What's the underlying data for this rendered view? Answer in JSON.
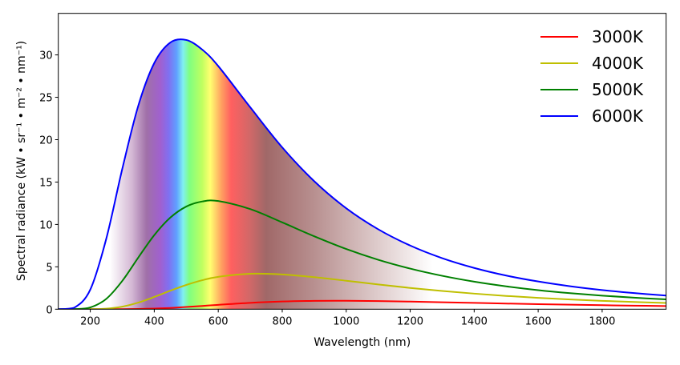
{
  "chart_data": {
    "type": "line",
    "title": "",
    "xlabel": "Wavelength (nm)",
    "ylabel": "Spectral radiance (kW • sr⁻¹ • m⁻² • nm⁻¹)",
    "xlim": [
      100,
      2000
    ],
    "ylim": [
      0,
      34.9
    ],
    "xticks": [
      200,
      400,
      600,
      800,
      1000,
      1200,
      1400,
      1600,
      1800
    ],
    "yticks": [
      0,
      5,
      10,
      15,
      20,
      25,
      30
    ],
    "grid": false,
    "legend_position": "top-right",
    "x": [
      100,
      150,
      200,
      250,
      300,
      350,
      400,
      450,
      500,
      550,
      600,
      700,
      800,
      900,
      1000,
      1100,
      1200,
      1300,
      1400,
      1500,
      1600,
      1700,
      1800,
      1900,
      2000
    ],
    "series": [
      {
        "name": "3000K",
        "color": "#ff0000",
        "values": [
          0,
          0,
          0,
          0.0006,
          0.0056,
          0.0255,
          0.072,
          0.152,
          0.26,
          0.386,
          0.517,
          0.75,
          0.908,
          0.983,
          0.993,
          0.957,
          0.896,
          0.823,
          0.745,
          0.668,
          0.597,
          0.531,
          0.472,
          0.419,
          0.372
        ]
      },
      {
        "name": "4000K",
        "color": "#bfbf00",
        "values": [
          0,
          0,
          0.0058,
          0.069,
          0.304,
          0.78,
          1.445,
          2.18,
          2.86,
          3.42,
          3.82,
          4.18,
          4.1,
          3.78,
          3.36,
          2.92,
          2.51,
          2.15,
          1.84,
          1.568,
          1.34,
          1.149,
          0.989,
          0.853,
          0.738
        ]
      },
      {
        "name": "5000K",
        "color": "#008000",
        "values": [
          0,
          0.0073,
          0.21,
          1.223,
          3.34,
          6.09,
          8.74,
          10.8,
          12.11,
          12.71,
          12.76,
          11.81,
          10.24,
          8.6,
          7.1,
          5.83,
          4.79,
          3.94,
          3.25,
          2.7,
          2.25,
          1.89,
          1.6,
          1.36,
          1.157
        ]
      },
      {
        "name": "6000K",
        "color": "#0000ff",
        "values": [
          0.0005,
          0.178,
          2.31,
          8.32,
          16.55,
          24.0,
          29.04,
          31.46,
          31.76,
          30.62,
          28.68,
          23.82,
          19.09,
          15.1,
          11.91,
          9.43,
          7.51,
          6.02,
          4.87,
          3.97,
          3.27,
          2.71,
          2.26,
          1.9,
          1.61
        ]
      }
    ],
    "spectrum_fill": {
      "under_series": "6000K",
      "stops": [
        {
          "wavelength": 261,
          "color": "#ffffff"
        },
        {
          "wavelength": 330,
          "color": "#d4b8d4"
        },
        {
          "wavelength": 376,
          "color": "#a070a8"
        },
        {
          "wavelength": 420,
          "color": "#a060d0"
        },
        {
          "wavelength": 445,
          "color": "#8070f0"
        },
        {
          "wavelength": 470,
          "color": "#60a0ff"
        },
        {
          "wavelength": 490,
          "color": "#80f0f0"
        },
        {
          "wavelength": 510,
          "color": "#80ff80"
        },
        {
          "wavelength": 550,
          "color": "#c0ff60"
        },
        {
          "wavelength": 575,
          "color": "#ffff70"
        },
        {
          "wavelength": 610,
          "color": "#ffa060"
        },
        {
          "wavelength": 640,
          "color": "#ff6060"
        },
        {
          "wavelength": 700,
          "color": "#d06868"
        },
        {
          "wavelength": 750,
          "color": "#a06868"
        },
        {
          "wavelength": 900,
          "color": "#b89090"
        },
        {
          "wavelength": 1270,
          "color": "#ffffff"
        }
      ]
    }
  }
}
